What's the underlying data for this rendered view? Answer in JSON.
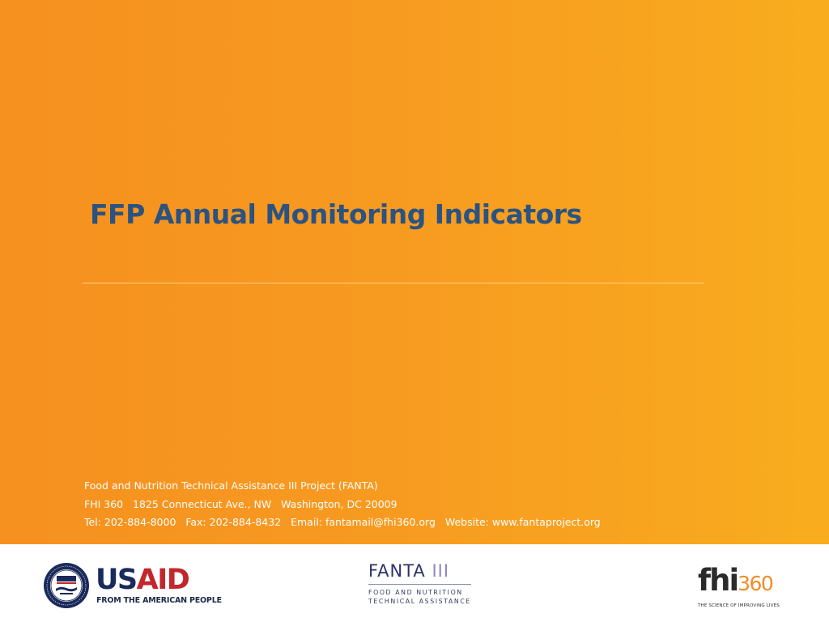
{
  "slide": {
    "title": "FFP Annual Monitoring Indicators",
    "title_color": "#2b5381",
    "background_colors": [
      "#f6901f",
      "#f9ad1e"
    ]
  },
  "footer": {
    "project": "Food and Nutrition Technical Assistance III Project (FANTA)",
    "address": "FHI 360   1825 Connecticut Ave., NW   Washington, DC 20009",
    "contact": "Tel: 202-884-8000   Fax: 202-884-8432   Email: fantamail@fhi360.org   Website: www.fantaproject.org"
  },
  "logos": {
    "usaid": {
      "word": "USAID",
      "tagline": "FROM THE AMERICAN PEOPLE",
      "seal_icon": "usaid-seal-icon",
      "colors": {
        "blue": "#1a2a5c",
        "red": "#c1272d"
      }
    },
    "fanta": {
      "name": "FANTA",
      "numeral": "III",
      "tagline_1": "FOOD AND NUTRITION",
      "tagline_2": "TECHNICAL ASSISTANCE",
      "colors": {
        "navy": "#2b3369",
        "violet": "#8b87c6"
      }
    },
    "fhi360": {
      "word_a": "fhi",
      "word_b": "360",
      "tagline": "THE SCIENCE OF IMPROVING LIVES",
      "colors": {
        "dark": "#2b2b2b",
        "orange": "#f28c28"
      }
    }
  }
}
